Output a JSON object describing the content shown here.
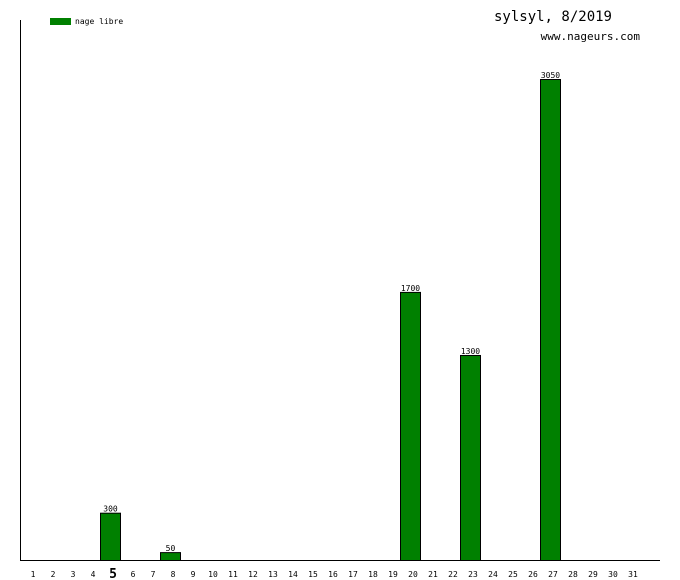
{
  "title": "sylsyl, 8/2019",
  "subtitle": "www.nageurs.com",
  "chart_data": {
    "type": "bar",
    "categories": [
      "1",
      "2",
      "3",
      "4",
      "5",
      "6",
      "7",
      "8",
      "9",
      "10",
      "11",
      "12",
      "13",
      "14",
      "15",
      "16",
      "17",
      "18",
      "19",
      "20",
      "21",
      "22",
      "23",
      "24",
      "25",
      "26",
      "27",
      "28",
      "29",
      "30",
      "31"
    ],
    "highlighted_category": "5",
    "series": [
      {
        "name": "nage libre",
        "color": "#008000",
        "values": [
          0,
          0,
          0,
          0,
          300,
          0,
          0,
          50,
          0,
          0,
          0,
          0,
          0,
          0,
          0,
          0,
          0,
          0,
          0,
          1700,
          0,
          0,
          1300,
          0,
          0,
          0,
          3050,
          0,
          0,
          0,
          0
        ]
      }
    ],
    "ylim": [
      0,
      3050
    ],
    "grid": false,
    "legend": "top-left",
    "data_labels": true
  }
}
